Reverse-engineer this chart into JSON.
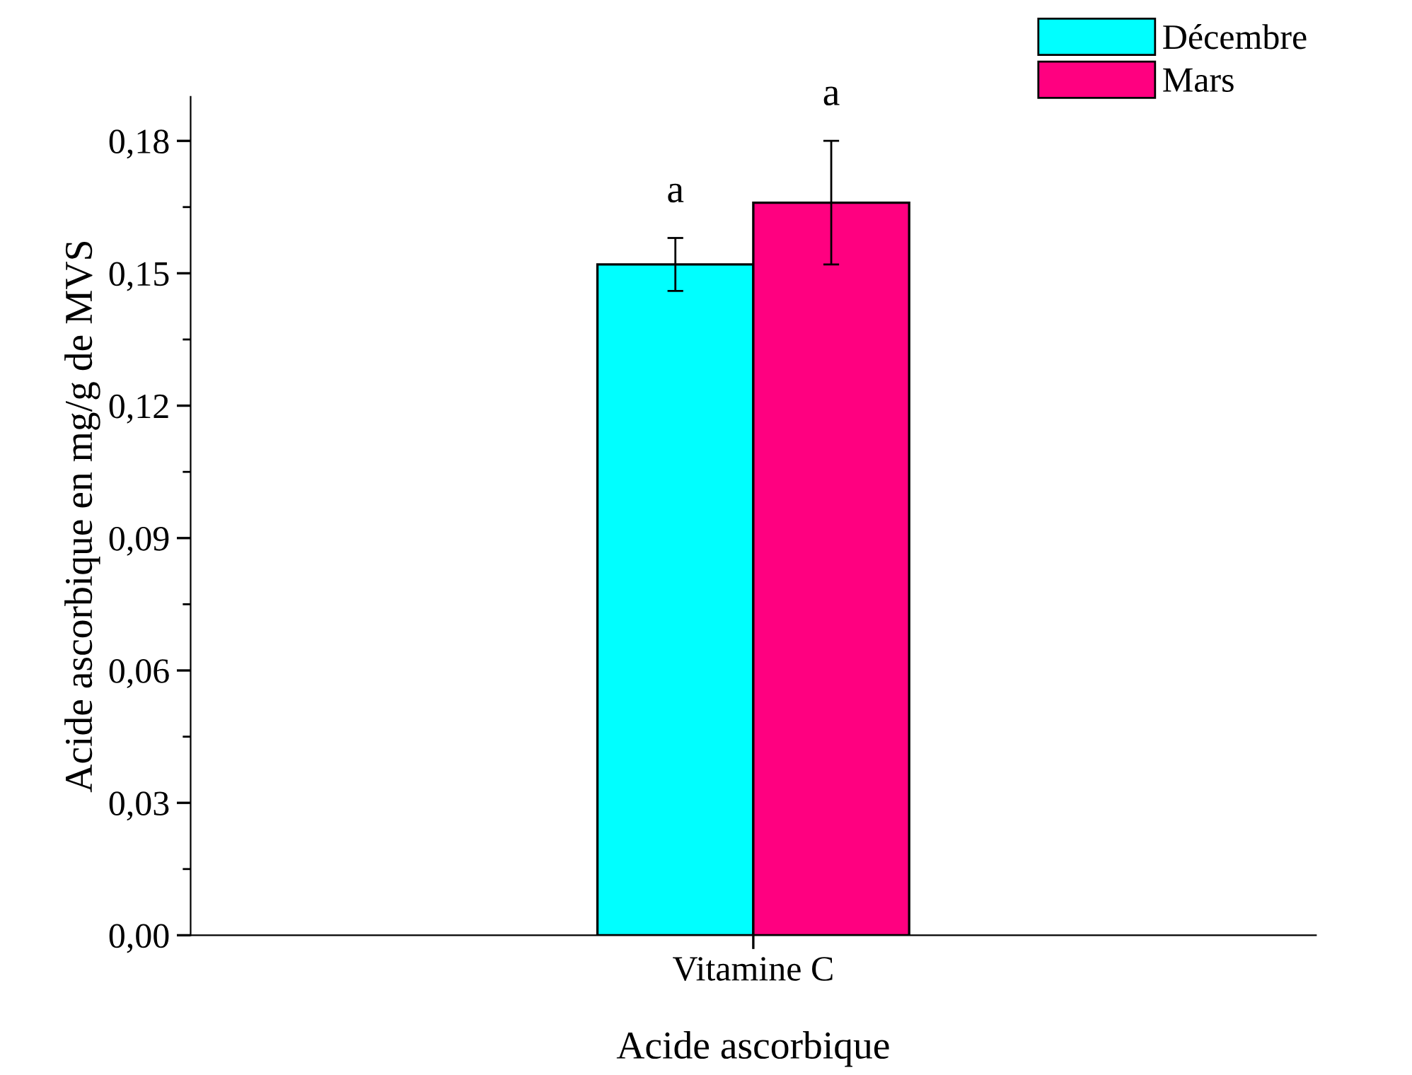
{
  "chart_data": {
    "type": "bar",
    "xlabel": "Acide ascorbique",
    "ylabel": "Acide ascorbique en mg/g de MVS",
    "categories": [
      "Vitamine C"
    ],
    "series": [
      {
        "name": "Décembre",
        "color": "#00ffff",
        "values": [
          0.152
        ],
        "errors": [
          0.006
        ]
      },
      {
        "name": "Mars",
        "color": "#ff0080",
        "values": [
          0.166
        ],
        "errors": [
          0.014
        ]
      }
    ],
    "ylim": [
      0,
      0.19
    ],
    "yticks": [
      {
        "value": 0,
        "label": "0,00"
      },
      {
        "value": 0.03,
        "label": "0,03"
      },
      {
        "value": 0.06,
        "label": "0,06"
      },
      {
        "value": 0.09,
        "label": "0,09"
      },
      {
        "value": 0.12,
        "label": "0,12"
      },
      {
        "value": 0.15,
        "label": "0,15"
      },
      {
        "value": 0.18,
        "label": "0,18"
      }
    ],
    "annotations": [
      "a",
      "a"
    ],
    "legend": "top right",
    "grid": false
  }
}
